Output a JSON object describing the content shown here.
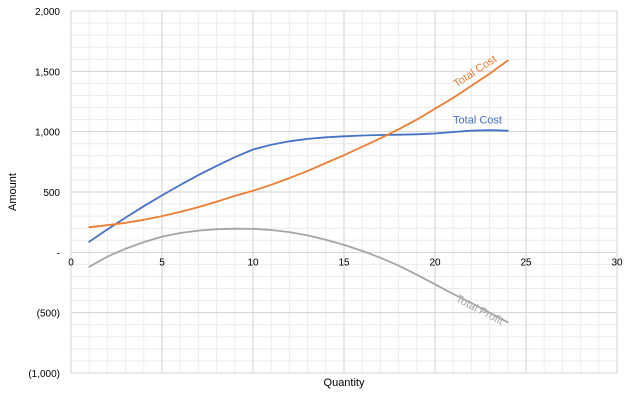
{
  "chart_data": {
    "type": "line",
    "xlabel": "Quantity",
    "ylabel": "Amount",
    "xlim": [
      0,
      30
    ],
    "ylim": [
      -1000,
      2000
    ],
    "x_ticks": [
      0,
      5,
      10,
      15,
      20,
      25,
      30
    ],
    "x_tick_labels": [
      "0",
      "5",
      "10",
      "15",
      "20",
      "25",
      "30"
    ],
    "y_ticks": [
      2000,
      1500,
      1000,
      500,
      0,
      -500,
      -1000
    ],
    "y_tick_labels": [
      "2,000",
      "1,500",
      "1,000",
      "500",
      "-",
      "(500)",
      "(1,000)"
    ],
    "grid": true,
    "minor_grid": true,
    "legend": "none",
    "series": [
      {
        "name": "Total Cost",
        "color": "#4472c4",
        "x": [
          1,
          2,
          3,
          4,
          5,
          6,
          7,
          8,
          9,
          10,
          11,
          12,
          13,
          14,
          15,
          16,
          17,
          18,
          19,
          20,
          21,
          22,
          23,
          24
        ],
        "y": [
          88,
          190,
          288,
          382,
          472,
          558,
          640,
          716,
          788,
          852,
          892,
          920,
          940,
          953,
          962,
          968,
          972,
          975,
          978,
          985,
          997,
          1008,
          1012,
          1008
        ]
      },
      {
        "name": "Total Cost",
        "color": "#ed7d31",
        "x": [
          1,
          2,
          3,
          4,
          5,
          6,
          7,
          8,
          9,
          10,
          11,
          12,
          13,
          14,
          15,
          16,
          17,
          18,
          19,
          20,
          21,
          22,
          23,
          24
        ],
        "y": [
          208,
          225,
          245,
          270,
          300,
          335,
          375,
          420,
          468,
          510,
          560,
          615,
          675,
          740,
          805,
          875,
          945,
          1020,
          1100,
          1190,
          1280,
          1380,
          1480,
          1590
        ]
      },
      {
        "name": "Total Profit",
        "color": "#a5a5a5",
        "x": [
          1,
          2,
          3,
          4,
          5,
          6,
          7,
          8,
          9,
          10,
          11,
          12,
          13,
          14,
          15,
          16,
          17,
          18,
          19,
          20,
          21,
          22,
          23,
          24
        ],
        "y": [
          -120,
          -35,
          30,
          85,
          130,
          160,
          180,
          192,
          196,
          194,
          185,
          168,
          140,
          105,
          62,
          12,
          -45,
          -110,
          -185,
          -265,
          -345,
          -420,
          -500,
          -580
        ]
      }
    ]
  }
}
